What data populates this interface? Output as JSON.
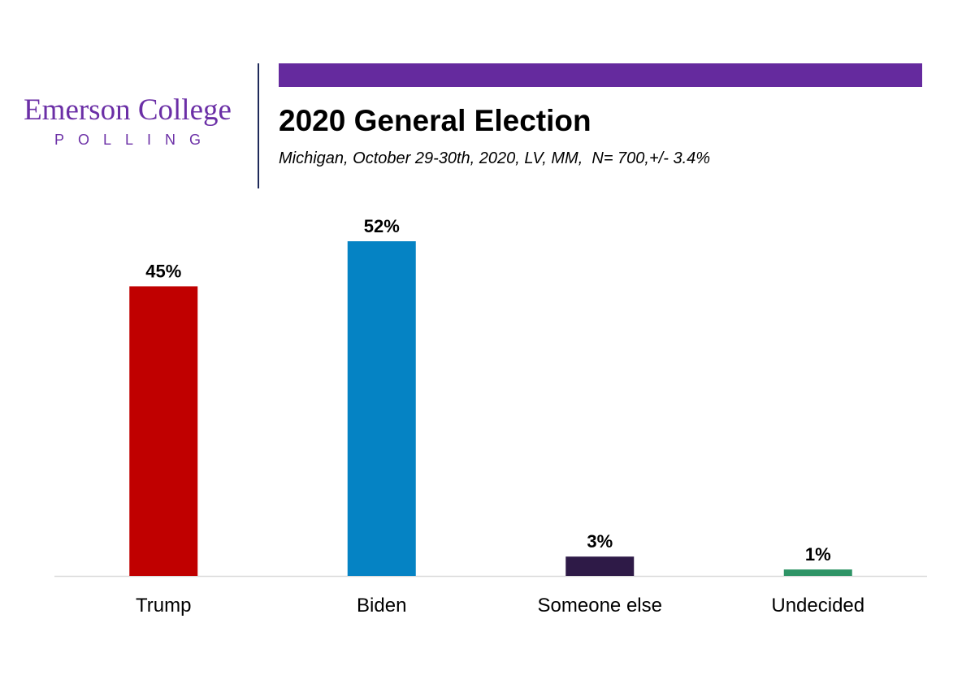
{
  "logo": {
    "name": "Emerson College",
    "sub": "POLLING",
    "color": "#6b2fa6"
  },
  "header": {
    "accent_color": "#652a9e",
    "divider_color": "#1f2a5a",
    "title": "2020 General Election",
    "subtitle": "Michigan, October 29-30th, 2020, LV, MM,  N= 700,+/- 3.4%"
  },
  "chart_data": {
    "type": "bar",
    "title": "2020 General Election",
    "subtitle": "Michigan, October 29-30th, 2020, LV, MM,  N= 700,+/- 3.4%",
    "categories": [
      "Trump",
      "Biden",
      "Someone else",
      "Undecided"
    ],
    "values": [
      45,
      52,
      3,
      1
    ],
    "value_labels": [
      "45%",
      "52%",
      "3%",
      "1%"
    ],
    "colors": [
      "#c00000",
      "#0583c4",
      "#2e1a47",
      "#2e9466"
    ],
    "xlabel": "",
    "ylabel": "",
    "ylim": [
      0,
      52
    ],
    "grid": false,
    "legend": "none"
  }
}
